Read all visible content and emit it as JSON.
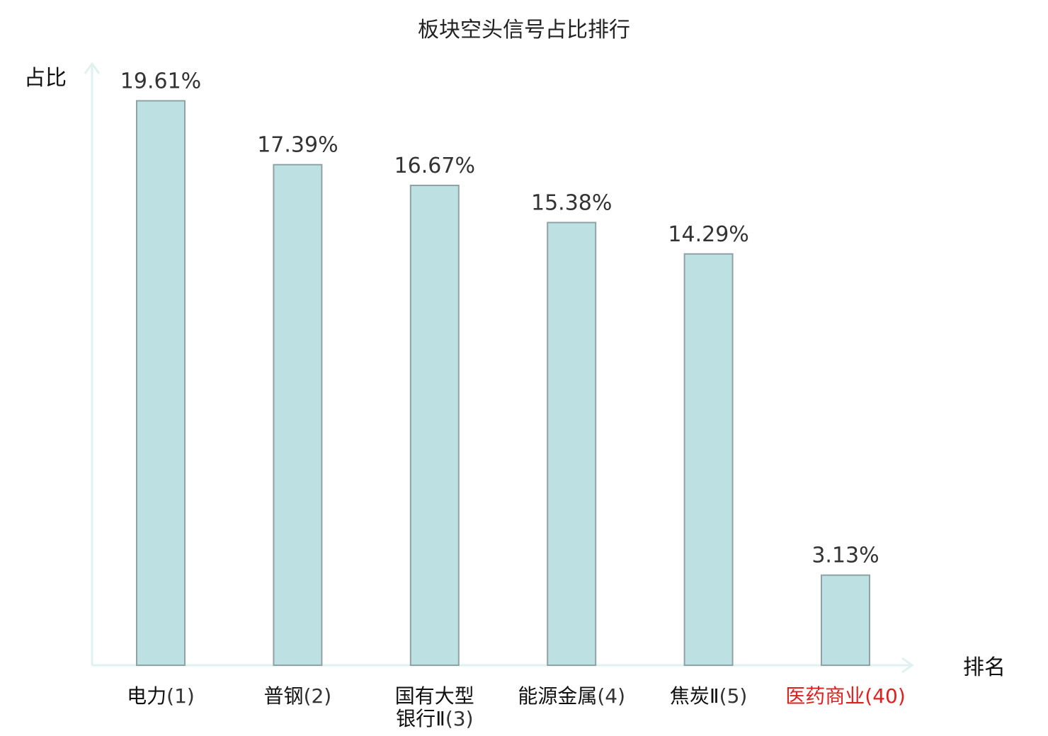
{
  "chart_data": {
    "type": "bar",
    "title": "板块空头信号占比排行",
    "ylabel": "占比",
    "xlabel": "排名",
    "categories": [
      {
        "name": "电力",
        "rank": "(1)"
      },
      {
        "name": "普钢",
        "rank": "(2)"
      },
      {
        "name": "国有大型",
        "name2": "银行Ⅱ",
        "rank": "(3)"
      },
      {
        "name": "能源金属",
        "rank": "(4)"
      },
      {
        "name": "焦炭Ⅱ",
        "rank": "(5)"
      },
      {
        "name": "医药商业",
        "rank": "(40)",
        "highlight": true
      }
    ],
    "values": [
      19.61,
      17.39,
      16.67,
      15.38,
      14.29,
      3.13
    ],
    "value_labels": [
      "19.61%",
      "17.39%",
      "16.67%",
      "15.38%",
      "14.29%",
      "3.13%"
    ],
    "ylim": [
      0,
      20.85
    ],
    "grid": false,
    "colors": {
      "bar_fill": "#bde0e3",
      "bar_stroke": "#8fa3a6",
      "axis": "#dff2ef",
      "label": "#111111",
      "highlight": "#e02020"
    }
  }
}
